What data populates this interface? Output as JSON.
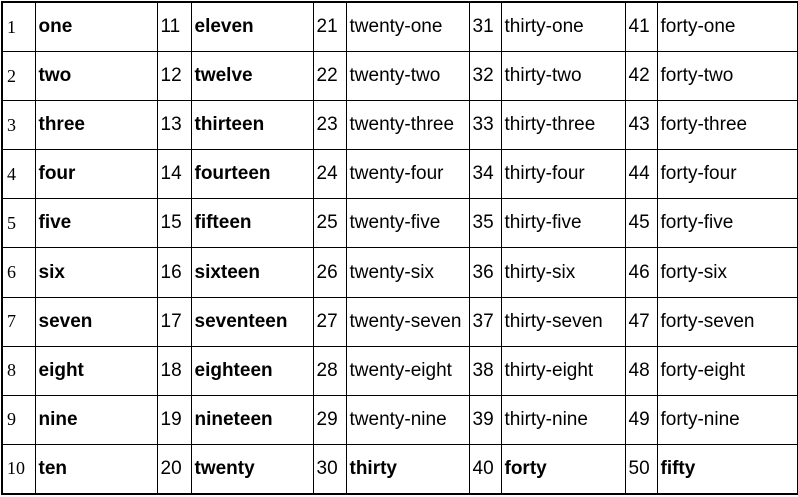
{
  "table": {
    "rows": [
      [
        "1",
        "one",
        "11",
        "eleven",
        "21",
        "twenty-one",
        "31",
        "thirty-one",
        "41",
        "forty-one"
      ],
      [
        "2",
        "two",
        "12",
        "twelve",
        "22",
        "twenty-two",
        "32",
        "thirty-two",
        "42",
        "forty-two"
      ],
      [
        "3",
        "three",
        "13",
        "thirteen",
        "23",
        "twenty-three",
        "33",
        "thirty-three",
        "43",
        "forty-three"
      ],
      [
        "4",
        "four",
        "14",
        "fourteen",
        "24",
        "twenty-four",
        "34",
        "thirty-four",
        "44",
        "forty-four"
      ],
      [
        "5",
        "five",
        "15",
        "fifteen",
        "25",
        "twenty-five",
        "35",
        "thirty-five",
        "45",
        "forty-five"
      ],
      [
        "6",
        "six",
        "16",
        "sixteen",
        "26",
        "twenty-six",
        "36",
        "thirty-six",
        "46",
        "forty-six"
      ],
      [
        "7",
        "seven",
        "17",
        "seventeen",
        "27",
        "twenty-seven",
        "37",
        "thirty-seven",
        "47",
        "forty-seven"
      ],
      [
        "8",
        "eight",
        "18",
        "eighteen",
        "28",
        "twenty-eight",
        "38",
        "thirty-eight",
        "48",
        "forty-eight"
      ],
      [
        "9",
        "nine",
        "19",
        "nineteen",
        "29",
        "twenty-nine",
        "39",
        "thirty-nine",
        "49",
        "forty-nine"
      ],
      [
        "10",
        "ten",
        "20",
        "twenty",
        "30",
        "thirty",
        "40",
        "forty",
        "50",
        "fifty"
      ]
    ]
  }
}
